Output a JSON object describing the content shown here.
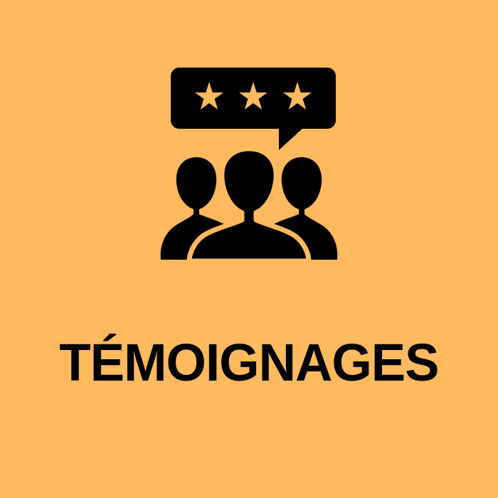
{
  "tile": {
    "background": "#FFB95E",
    "icon": "testimonial-users-with-rating-icon",
    "title": "TÉMOIGNAGES",
    "rating": {
      "stars_shown": 3,
      "star_color": "#FFB95E",
      "bubble_color": "#000000"
    },
    "text_color": "#000000"
  }
}
